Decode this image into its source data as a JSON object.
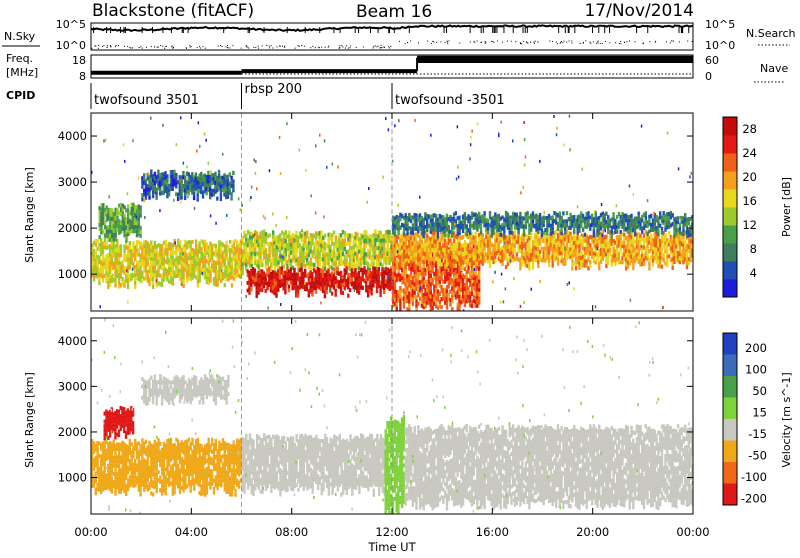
{
  "header": {
    "title": "Blackstone (fitACF)",
    "beam": "Beam 16",
    "date": "17/Nov/2014"
  },
  "params": {
    "nsky_label": "N.Sky",
    "nsky_ticks": [
      "10^5",
      "10^0"
    ],
    "nsearch_label": "N.Search",
    "nsearch_ticks": [
      "10^5",
      "10^0"
    ],
    "freq_label_1": "Freq.",
    "freq_label_2": "[MHz]",
    "freq_ticks": [
      "18",
      "8"
    ],
    "nave_label": "Nave",
    "nave_ticks": [
      "60",
      "0"
    ],
    "cpid_label": "CPID"
  },
  "cpid_segments": [
    {
      "name": "twofsound 3501",
      "start_hour": 0
    },
    {
      "name": "rbsp 200",
      "start_hour": 6
    },
    {
      "name": "twofsound -3501",
      "start_hour": 12
    }
  ],
  "freq_series": [
    {
      "start_hour": 0,
      "end_hour": 6,
      "value": 10.3
    },
    {
      "start_hour": 6,
      "end_hour": 13,
      "value": 11.0
    },
    {
      "start_hour": 13,
      "end_hour": 24,
      "value": 16.8
    }
  ],
  "x_axis": {
    "label": "Time UT",
    "ticks": [
      "00:00",
      "04:00",
      "08:00",
      "12:00",
      "16:00",
      "20:00",
      "00:00"
    ]
  },
  "chart_data": [
    {
      "type": "heatmap",
      "parameter": "Power",
      "colorbar_label": "Power [dB]",
      "ylabel": "Slant Range [km]",
      "yticks": [
        1000,
        2000,
        3000,
        4000
      ],
      "ylim": [
        200,
        4500
      ],
      "xlim_hours": [
        0,
        24
      ],
      "colorbar_ticks": [
        4,
        8,
        12,
        16,
        20,
        24,
        28
      ],
      "colorbar_range": [
        0,
        30
      ],
      "colors": [
        "#1c1cdc",
        "#1f4fb4",
        "#3e7e5a",
        "#48a048",
        "#9ccb2a",
        "#e8d81c",
        "#f4a01c",
        "#f06018",
        "#e21a12",
        "#c40c0c"
      ],
      "bands": [
        {
          "t0": 0.0,
          "t1": 6.0,
          "r0": 800,
          "r1": 1700,
          "value": 16
        },
        {
          "t0": 0.3,
          "t1": 2.0,
          "r0": 1800,
          "r1": 2500,
          "value": 10
        },
        {
          "t0": 2.0,
          "t1": 5.7,
          "r0": 2700,
          "r1": 3200,
          "value": 6
        },
        {
          "t0": 6.0,
          "t1": 12.0,
          "r0": 1100,
          "r1": 1900,
          "value": 15
        },
        {
          "t0": 6.2,
          "t1": 12.0,
          "r0": 600,
          "r1": 1100,
          "value": 27
        },
        {
          "t0": 12.0,
          "t1": 15.5,
          "r0": 300,
          "r1": 1600,
          "value": 23
        },
        {
          "t0": 12.0,
          "t1": 24.0,
          "r0": 1200,
          "r1": 1900,
          "value": 19
        },
        {
          "t0": 12.0,
          "t1": 24.0,
          "r0": 1900,
          "r1": 2300,
          "value": 7
        }
      ]
    },
    {
      "type": "heatmap",
      "parameter": "Velocity",
      "colorbar_label": "Velocity [m s^-1]",
      "ylabel": "Slant Range [km]",
      "yticks": [
        1000,
        2000,
        3000,
        4000
      ],
      "ylim": [
        200,
        4500
      ],
      "xlim_hours": [
        0,
        24
      ],
      "colorbar_ticks": [
        200,
        100,
        50,
        15,
        -15,
        -50,
        -100,
        -200
      ],
      "colors": [
        "#2040c0",
        "#3c6cb8",
        "#48a048",
        "#7ed23a",
        "#c8c8c0",
        "#f0a818",
        "#f06818",
        "#e01818"
      ],
      "bands": [
        {
          "t0": 0.0,
          "t1": 6.0,
          "r0": 700,
          "r1": 1800,
          "value": -40
        },
        {
          "t0": 0.5,
          "t1": 1.7,
          "r0": 1900,
          "r1": 2500,
          "value": -180
        },
        {
          "t0": 2.0,
          "t1": 5.5,
          "r0": 2700,
          "r1": 3200,
          "value": 0
        },
        {
          "t0": 6.0,
          "t1": 11.8,
          "r0": 700,
          "r1": 1900,
          "value": 0
        },
        {
          "t0": 11.7,
          "t1": 12.5,
          "r0": 300,
          "r1": 2300,
          "value": 30
        },
        {
          "t0": 12.5,
          "t1": 24.0,
          "r0": 400,
          "r1": 2100,
          "value": 0
        }
      ]
    }
  ]
}
